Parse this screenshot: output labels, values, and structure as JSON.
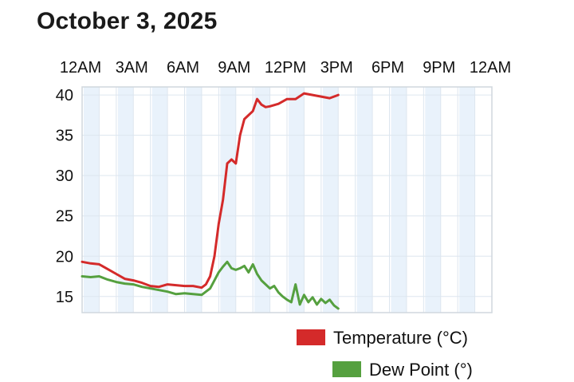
{
  "page": {
    "title": "October 3, 2025"
  },
  "chart_data": {
    "type": "line",
    "title": "October 3, 2025",
    "xlabel": "",
    "ylabel": "",
    "x_unit": "hour of day",
    "xlim": [
      0,
      24
    ],
    "ylim": [
      13,
      41
    ],
    "x_ticks": [
      0,
      3,
      6,
      9,
      12,
      15,
      18,
      21,
      24
    ],
    "x_tick_labels": [
      "12AM",
      "3AM",
      "6AM",
      "9AM",
      "12PM",
      "3PM",
      "6PM",
      "9PM",
      "12AM"
    ],
    "y_ticks": [
      15,
      20,
      25,
      30,
      35,
      40
    ],
    "y_tick_labels": [
      "15",
      "20",
      "25",
      "30",
      "35",
      "40"
    ],
    "grid": true,
    "legend": "bottom-right",
    "series": [
      {
        "name": "Temperature (°C)",
        "color": "#d42a2a",
        "x": [
          0,
          0.5,
          1,
          1.5,
          2,
          2.5,
          3,
          3.5,
          4,
          4.5,
          5,
          5.5,
          6,
          6.5,
          7,
          7.25,
          7.5,
          7.75,
          8,
          8.25,
          8.5,
          8.75,
          9,
          9.25,
          9.5,
          9.75,
          10,
          10.25,
          10.5,
          10.75,
          11,
          11.5,
          12,
          12.5,
          13,
          13.5,
          14,
          14.5,
          15
        ],
        "y": [
          19.3,
          19.1,
          19.0,
          18.4,
          17.8,
          17.2,
          17.0,
          16.7,
          16.3,
          16.2,
          16.5,
          16.4,
          16.3,
          16.3,
          16.1,
          16.5,
          17.5,
          20.0,
          24.0,
          27.0,
          31.5,
          32.0,
          31.5,
          35.0,
          37.0,
          37.5,
          38.0,
          39.5,
          38.8,
          38.5,
          38.6,
          38.9,
          39.5,
          39.5,
          40.2,
          40.0,
          39.8,
          39.6,
          40.0
        ]
      },
      {
        "name": "Dew Point (°)",
        "color": "#55a03f",
        "x": [
          0,
          0.5,
          1,
          1.5,
          2,
          2.5,
          3,
          3.5,
          4,
          4.5,
          5,
          5.5,
          6,
          6.5,
          7,
          7.25,
          7.5,
          7.75,
          8,
          8.25,
          8.5,
          8.75,
          9,
          9.25,
          9.5,
          9.75,
          10,
          10.25,
          10.5,
          10.75,
          11,
          11.25,
          11.5,
          11.75,
          12,
          12.25,
          12.5,
          12.75,
          13,
          13.25,
          13.5,
          13.75,
          14,
          14.25,
          14.5,
          14.75,
          15
        ],
        "y": [
          17.5,
          17.4,
          17.5,
          17.1,
          16.8,
          16.6,
          16.5,
          16.2,
          16.0,
          15.8,
          15.6,
          15.3,
          15.4,
          15.3,
          15.2,
          15.6,
          16.0,
          17.0,
          18.0,
          18.7,
          19.3,
          18.5,
          18.3,
          18.5,
          18.8,
          18.0,
          19.0,
          17.8,
          17.0,
          16.5,
          16.0,
          16.3,
          15.5,
          15.0,
          14.6,
          14.3,
          16.5,
          14.0,
          15.2,
          14.3,
          14.9,
          14.0,
          14.7,
          14.2,
          14.6,
          13.9,
          13.5
        ]
      }
    ]
  }
}
